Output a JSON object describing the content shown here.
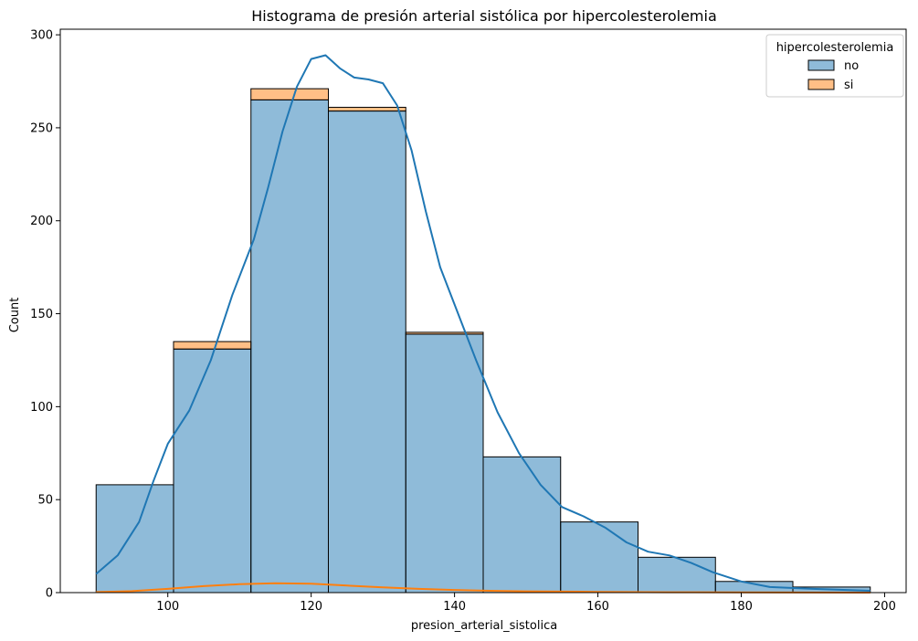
{
  "chart_data": {
    "type": "histogram",
    "title": "Histograma de presión arterial sistólica por hipercolesterolemia",
    "xlabel": "presion_arterial_sistolica",
    "ylabel": "Count",
    "xlim": [
      85,
      203
    ],
    "ylim": [
      0,
      303
    ],
    "xticks": [
      100,
      120,
      140,
      160,
      180,
      200
    ],
    "yticks": [
      0,
      50,
      100,
      150,
      200,
      250,
      300
    ],
    "bin_edges": [
      90,
      100.8,
      111.6,
      122.4,
      133.2,
      144,
      154.8,
      165.6,
      176.4,
      187.2,
      198
    ],
    "series": [
      {
        "name": "no",
        "color": "#1f77b4",
        "counts": [
          58,
          131,
          265,
          259,
          139,
          73,
          38,
          19,
          6,
          3
        ],
        "kde": [
          [
            90,
            10
          ],
          [
            93,
            20
          ],
          [
            96,
            38
          ],
          [
            98,
            60
          ],
          [
            100,
            80
          ],
          [
            103,
            98
          ],
          [
            106,
            125
          ],
          [
            109,
            160
          ],
          [
            112,
            190
          ],
          [
            114,
            218
          ],
          [
            116,
            248
          ],
          [
            118,
            272
          ],
          [
            120,
            287
          ],
          [
            122,
            289
          ],
          [
            124,
            282
          ],
          [
            126,
            277
          ],
          [
            128,
            276
          ],
          [
            130,
            274
          ],
          [
            132,
            262
          ],
          [
            134,
            238
          ],
          [
            136,
            205
          ],
          [
            138,
            175
          ],
          [
            140,
            155
          ],
          [
            143,
            125
          ],
          [
            146,
            97
          ],
          [
            149,
            75
          ],
          [
            152,
            58
          ],
          [
            155,
            46
          ],
          [
            158,
            41
          ],
          [
            161,
            35
          ],
          [
            164,
            27
          ],
          [
            167,
            22
          ],
          [
            170,
            20
          ],
          [
            173,
            16
          ],
          [
            176,
            11
          ],
          [
            180,
            6
          ],
          [
            184,
            3
          ],
          [
            190,
            2
          ],
          [
            198,
            1
          ]
        ]
      },
      {
        "name": "si",
        "color": "#ff7f0e",
        "counts": [
          0,
          4,
          6,
          2,
          1,
          0,
          0,
          0,
          0,
          0
        ],
        "kde": [
          [
            90,
            0.3
          ],
          [
            95,
            0.8
          ],
          [
            100,
            2
          ],
          [
            105,
            3.5
          ],
          [
            110,
            4.5
          ],
          [
            115,
            5
          ],
          [
            120,
            4.8
          ],
          [
            125,
            3.8
          ],
          [
            130,
            2.8
          ],
          [
            135,
            2
          ],
          [
            140,
            1.4
          ],
          [
            145,
            1
          ],
          [
            150,
            0.7
          ],
          [
            160,
            0.4
          ],
          [
            170,
            0.2
          ],
          [
            180,
            0.1
          ],
          [
            198,
            0
          ]
        ]
      }
    ],
    "legend": {
      "title": "hipercolesterolemia",
      "placement": "top-right",
      "entries": [
        "no",
        "si"
      ]
    },
    "grid": false
  }
}
